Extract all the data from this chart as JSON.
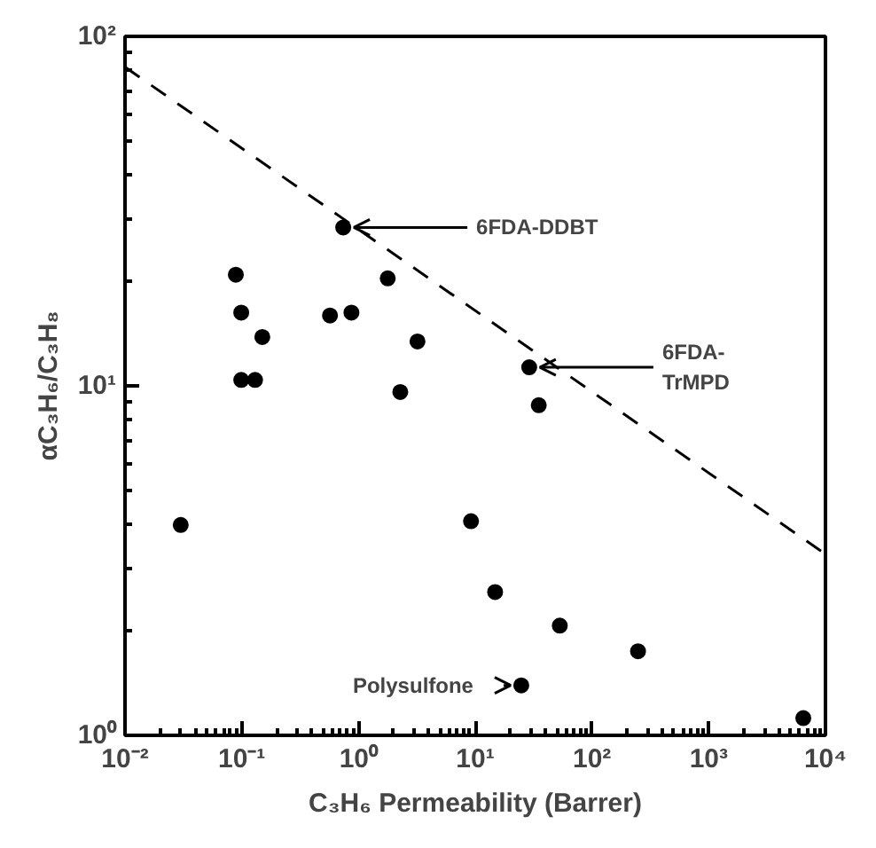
{
  "chart_data": {
    "type": "scatter",
    "xlabel": "C₃H₆ Permeability (Barrer)",
    "ylabel": "αC₃H₆/C₃H₈",
    "log": "xy",
    "grid": false,
    "xlim": [
      0.01,
      10000
    ],
    "ylim": [
      1,
      100
    ],
    "xticks": [
      {
        "value": 0.01,
        "label": "10⁻²"
      },
      {
        "value": 0.1,
        "label": "10⁻¹"
      },
      {
        "value": 1,
        "label": "10⁰"
      },
      {
        "value": 10,
        "label": "10¹"
      },
      {
        "value": 100,
        "label": "10²"
      },
      {
        "value": 1000,
        "label": "10³"
      },
      {
        "value": 10000,
        "label": "10⁴"
      }
    ],
    "yticks": [
      {
        "value": 1,
        "label": "10⁰"
      },
      {
        "value": 10,
        "label": "10¹"
      },
      {
        "value": 100,
        "label": "10²"
      }
    ],
    "series": [
      {
        "marker": "circle",
        "color": "#000000",
        "x": [
          0.03,
          0.089,
          0.099,
          0.099,
          0.13,
          0.15,
          0.57,
          0.87,
          0.74,
          1.78,
          2.28,
          3.2,
          29,
          35,
          9.2,
          14.8,
          53,
          248,
          24.8,
          6460
        ],
        "values": [
          4.0,
          20.8,
          16.2,
          10.4,
          10.4,
          13.8,
          15.9,
          16.2,
          28.4,
          20.3,
          9.6,
          13.4,
          11.3,
          8.8,
          4.1,
          2.57,
          2.06,
          1.74,
          1.39,
          1.12
        ]
      },
      {
        "type": "line",
        "color": "#000000",
        "line_style": "dashed",
        "x": [
          0.01,
          10000
        ],
        "values": [
          81.7,
          3.3
        ]
      }
    ],
    "annotations": [
      {
        "text": "6FDA-DDBT",
        "x": 0.74,
        "y": 28.4
      },
      {
        "text": "6FDA-\nTrMPD",
        "x": 29,
        "y": 11.3
      },
      {
        "text": "Polysulfone",
        "x": 24.8,
        "y": 1.39
      }
    ]
  }
}
